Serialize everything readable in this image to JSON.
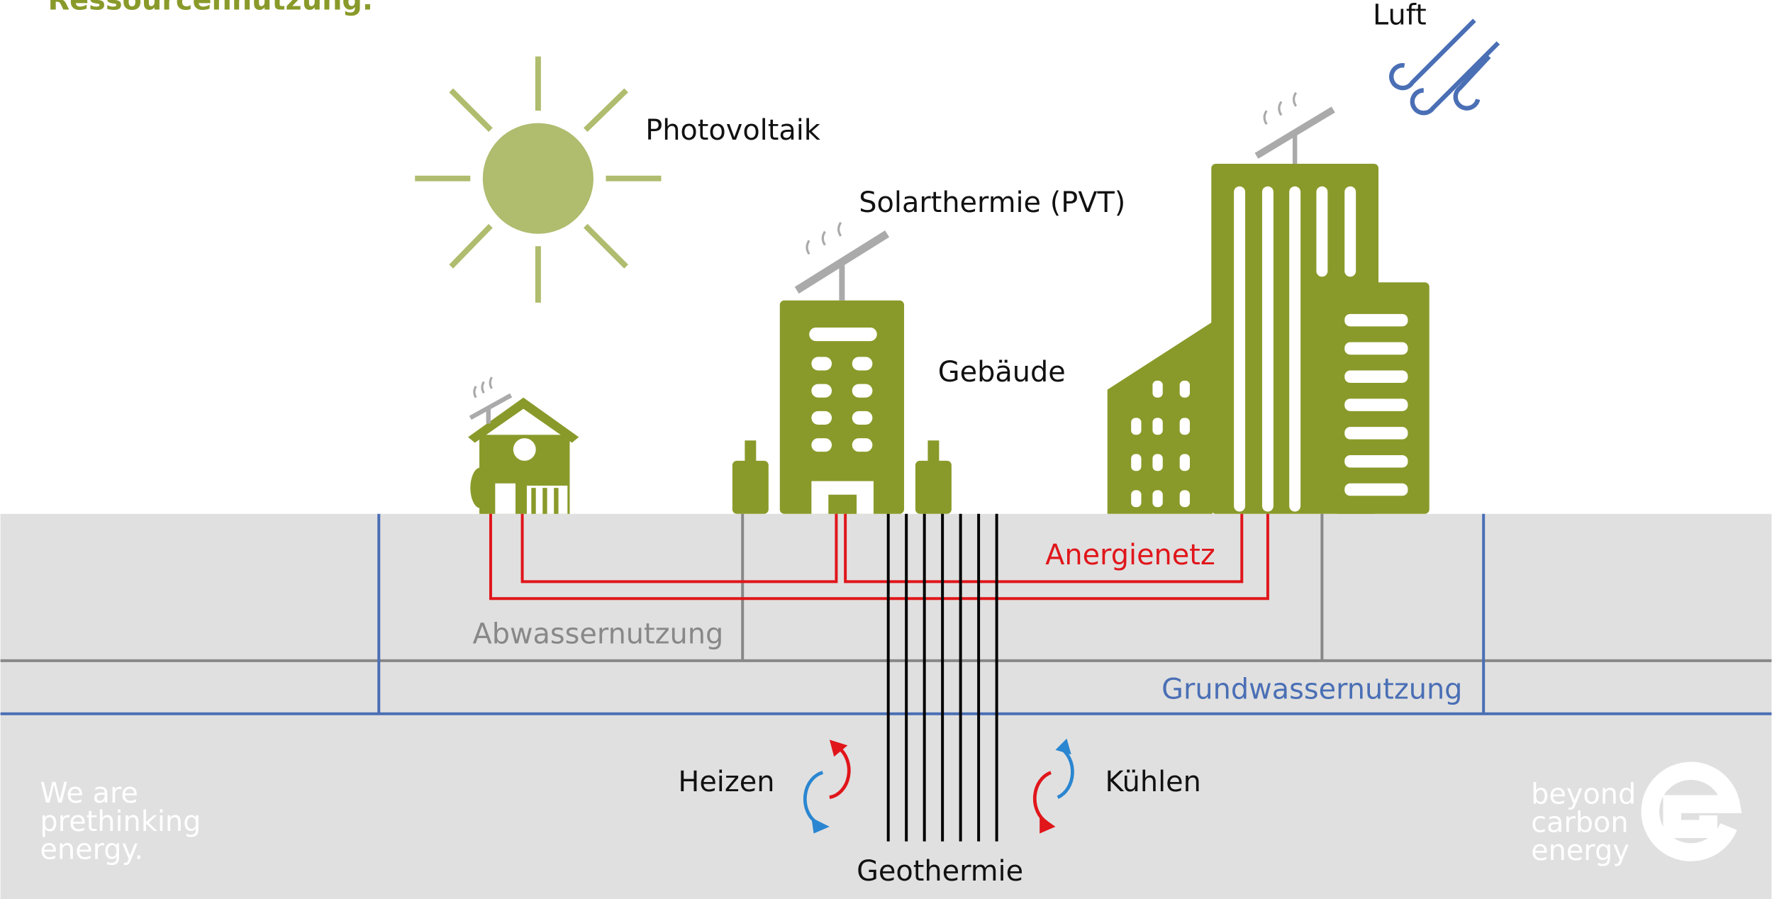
{
  "header": {
    "title": "Ressourcennutzung."
  },
  "labels": {
    "photovoltaik": "Photovoltaik",
    "solarthermie": "Solarthermie (PVT)",
    "gebaeude": "Gebäude",
    "luft": "Luft",
    "anergienetz": "Anergienetz",
    "abwasser": "Abwassernutzung",
    "grundwasser": "Grundwassernutzung",
    "heizen": "Heizen",
    "kuehlen": "Kühlen",
    "geothermie": "Geothermie"
  },
  "footer": {
    "slogan": [
      "We are",
      "prethinking",
      "energy."
    ],
    "brand": [
      "beyond",
      "carbon",
      "energy"
    ]
  }
}
